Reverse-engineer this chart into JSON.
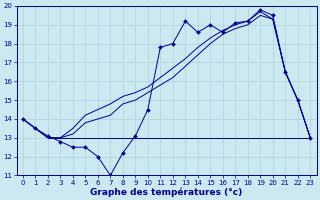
{
  "title": "Graphe des températures (°c)",
  "bg_color": "#cce8f0",
  "line_color": "#00008b",
  "grid_color": "#b0d0dc",
  "xlim": [
    -0.5,
    23.5
  ],
  "ylim": [
    11,
    20
  ],
  "xticks": [
    0,
    1,
    2,
    3,
    4,
    5,
    6,
    7,
    8,
    9,
    10,
    11,
    12,
    13,
    14,
    15,
    16,
    17,
    18,
    19,
    20,
    21,
    22,
    23
  ],
  "yticks": [
    11,
    12,
    13,
    14,
    15,
    16,
    17,
    18,
    19,
    20
  ],
  "line1_x": [
    0,
    1,
    2,
    3,
    4,
    5,
    6,
    7,
    8,
    9,
    10,
    11,
    12,
    13,
    14,
    15,
    16,
    17,
    18,
    19,
    20,
    21,
    22,
    23
  ],
  "line1_y": [
    14,
    13.5,
    13.1,
    12.8,
    12.5,
    12.5,
    12.0,
    11.0,
    12.2,
    13.1,
    14.5,
    17.8,
    18.0,
    19.2,
    18.6,
    19.0,
    18.6,
    19.1,
    19.2,
    19.8,
    19.5,
    16.5,
    15.0,
    13.0
  ],
  "line2_x": [
    0,
    1,
    2,
    3,
    4,
    5,
    6,
    7,
    8,
    9,
    10,
    11,
    12,
    13,
    14,
    15,
    16,
    17,
    18,
    19,
    20,
    21,
    22,
    23
  ],
  "line2_y": [
    14.0,
    13.5,
    13.0,
    13.0,
    13.2,
    13.8,
    14.0,
    14.2,
    14.8,
    15.0,
    15.4,
    15.8,
    16.2,
    16.8,
    17.4,
    18.0,
    18.5,
    18.8,
    19.0,
    19.5,
    19.3,
    16.5,
    15.0,
    13.0
  ],
  "line3_x": [
    0,
    1,
    2,
    3,
    4,
    5,
    6,
    7,
    8,
    9,
    10,
    11,
    12,
    13,
    14,
    15,
    16,
    17,
    18,
    19,
    20,
    21,
    22,
    23
  ],
  "line3_y": [
    14.0,
    13.5,
    13.0,
    13.0,
    13.5,
    14.2,
    14.5,
    14.8,
    15.2,
    15.4,
    15.7,
    16.2,
    16.7,
    17.2,
    17.8,
    18.3,
    18.7,
    19.0,
    19.2,
    19.7,
    19.3,
    16.5,
    15.0,
    13.0
  ],
  "hline_y": 13.0,
  "hline_x_start": 2,
  "hline_x_end": 23,
  "marker": "D",
  "markersize": 2.0,
  "xlabel_size": 6.5,
  "tick_size": 5.0
}
